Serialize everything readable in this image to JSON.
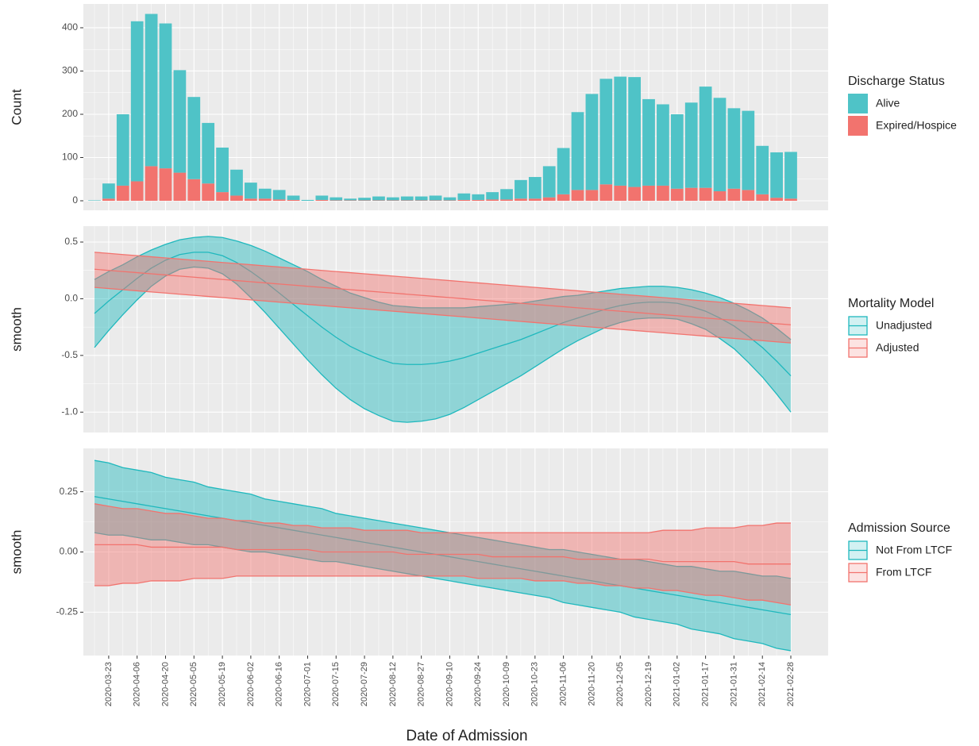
{
  "chart_data": [
    {
      "type": "bar",
      "stacked": true,
      "y_label": "Count",
      "legend_title": "Discharge Status",
      "series": [
        {
          "name": "Alive",
          "color": "#4fc3c7",
          "values": [
            1,
            35,
            165,
            370,
            352,
            335,
            237,
            190,
            140,
            103,
            60,
            37,
            23,
            22,
            10,
            2,
            10,
            7,
            4,
            6,
            9,
            7,
            9,
            9,
            11,
            7,
            15,
            13,
            17,
            24,
            43,
            50,
            72,
            107,
            180,
            222,
            244,
            252,
            254,
            200,
            188,
            172,
            197,
            234,
            216,
            186,
            183,
            112,
            105,
            108
          ]
        },
        {
          "name": "Expired/Hospice",
          "color": "#f2736e",
          "values": [
            0,
            5,
            35,
            45,
            80,
            75,
            65,
            50,
            40,
            20,
            12,
            5,
            5,
            3,
            2,
            0,
            2,
            1,
            1,
            1,
            1,
            1,
            1,
            1,
            1,
            1,
            2,
            2,
            3,
            3,
            5,
            5,
            8,
            15,
            25,
            25,
            38,
            35,
            32,
            35,
            35,
            28,
            30,
            30,
            22,
            28,
            25,
            15,
            7,
            5
          ]
        }
      ],
      "ylim": [
        -22,
        455
      ],
      "yticks": [
        0,
        100,
        200,
        300,
        400
      ],
      "grid": true
    },
    {
      "type": "ribbon",
      "y_label": "smooth",
      "legend_title": "Mortality Model",
      "series": [
        {
          "name": "Unadjusted",
          "color": "#1fb8bd",
          "values": [
            -0.13,
            -0.02,
            0.08,
            0.18,
            0.27,
            0.34,
            0.39,
            0.41,
            0.41,
            0.38,
            0.32,
            0.24,
            0.15,
            0.05,
            -0.05,
            -0.15,
            -0.25,
            -0.34,
            -0.42,
            -0.48,
            -0.53,
            -0.57,
            -0.58,
            -0.58,
            -0.57,
            -0.55,
            -0.52,
            -0.48,
            -0.44,
            -0.4,
            -0.36,
            -0.31,
            -0.26,
            -0.21,
            -0.17,
            -0.13,
            -0.09,
            -0.06,
            -0.04,
            -0.03,
            -0.03,
            -0.04,
            -0.07,
            -0.11,
            -0.17,
            -0.24,
            -0.33,
            -0.43,
            -0.55,
            -0.68
          ],
          "upper": [
            0.17,
            0.24,
            0.3,
            0.37,
            0.43,
            0.48,
            0.52,
            0.54,
            0.55,
            0.54,
            0.51,
            0.47,
            0.42,
            0.36,
            0.3,
            0.24,
            0.17,
            0.11,
            0.05,
            0.01,
            -0.03,
            -0.06,
            -0.07,
            -0.08,
            -0.08,
            -0.08,
            -0.08,
            -0.07,
            -0.06,
            -0.05,
            -0.04,
            -0.02,
            0,
            0.02,
            0.03,
            0.05,
            0.07,
            0.09,
            0.1,
            0.11,
            0.11,
            0.1,
            0.08,
            0.05,
            0.01,
            -0.04,
            -0.1,
            -0.17,
            -0.26,
            -0.36
          ],
          "lower": [
            -0.43,
            -0.28,
            -0.14,
            -0.01,
            0.11,
            0.2,
            0.26,
            0.28,
            0.27,
            0.22,
            0.13,
            0.01,
            -0.12,
            -0.26,
            -0.4,
            -0.54,
            -0.67,
            -0.79,
            -0.89,
            -0.97,
            -1.03,
            -1.08,
            -1.09,
            -1.08,
            -1.06,
            -1.02,
            -0.96,
            -0.89,
            -0.82,
            -0.75,
            -0.68,
            -0.6,
            -0.52,
            -0.44,
            -0.37,
            -0.31,
            -0.25,
            -0.21,
            -0.18,
            -0.17,
            -0.17,
            -0.18,
            -0.22,
            -0.27,
            -0.35,
            -0.44,
            -0.56,
            -0.69,
            -0.84,
            -1
          ]
        },
        {
          "name": "Adjusted",
          "color": "#f2736e",
          "values": [
            0.26,
            0.25,
            0.24,
            0.23,
            0.22,
            0.21,
            0.2,
            0.19,
            0.18,
            0.17,
            0.16,
            0.15,
            0.14,
            0.13,
            0.12,
            0.11,
            0.1,
            0.09,
            0.08,
            0.07,
            0.06,
            0.05,
            0.04,
            0.03,
            0.02,
            0.01,
            0,
            -0.01,
            -0.02,
            -0.03,
            -0.04,
            -0.05,
            -0.06,
            -0.07,
            -0.08,
            -0.09,
            -0.1,
            -0.11,
            -0.12,
            -0.13,
            -0.14,
            -0.15,
            -0.16,
            -0.17,
            -0.18,
            -0.19,
            -0.2,
            -0.21,
            -0.22,
            -0.23
          ],
          "upper": [
            0.41,
            0.4,
            0.39,
            0.38,
            0.37,
            0.36,
            0.35,
            0.34,
            0.33,
            0.32,
            0.31,
            0.3,
            0.29,
            0.28,
            0.27,
            0.26,
            0.25,
            0.24,
            0.23,
            0.22,
            0.21,
            0.2,
            0.19,
            0.18,
            0.17,
            0.16,
            0.15,
            0.14,
            0.13,
            0.12,
            0.11,
            0.1,
            0.09,
            0.08,
            0.07,
            0.06,
            0.05,
            0.04,
            0.03,
            0.02,
            0.01,
            0,
            -0.01,
            -0.02,
            -0.03,
            -0.04,
            -0.05,
            -0.06,
            -0.07,
            -0.08
          ],
          "lower": [
            0.1,
            0.09,
            0.08,
            0.07,
            0.06,
            0.05,
            0.04,
            0.03,
            0.02,
            0.01,
            0,
            -0.01,
            -0.02,
            -0.03,
            -0.04,
            -0.05,
            -0.06,
            -0.07,
            -0.08,
            -0.09,
            -0.1,
            -0.11,
            -0.12,
            -0.13,
            -0.14,
            -0.15,
            -0.16,
            -0.17,
            -0.18,
            -0.19,
            -0.2,
            -0.21,
            -0.22,
            -0.23,
            -0.24,
            -0.25,
            -0.26,
            -0.27,
            -0.28,
            -0.29,
            -0.3,
            -0.31,
            -0.32,
            -0.33,
            -0.34,
            -0.35,
            -0.36,
            -0.37,
            -0.38,
            -0.39
          ]
        }
      ],
      "ylim": [
        -1.18,
        0.64
      ],
      "yticks": [
        0.5,
        {
          "value": 0,
          "label": "0.0"
        },
        -0.5,
        {
          "value": -1,
          "label": "-1.0"
        }
      ],
      "grid": true
    },
    {
      "type": "ribbon",
      "y_label": "smooth",
      "legend_title": "Admission Source",
      "x_label": "Date of Admission",
      "categories": [
        null,
        "2020-03-23",
        null,
        "2020-04-06",
        null,
        "2020-04-20",
        null,
        "2020-05-05",
        null,
        "2020-05-19",
        null,
        "2020-06-02",
        null,
        "2020-06-16",
        null,
        "2020-07-01",
        null,
        "2020-07-15",
        null,
        "2020-07-29",
        null,
        "2020-08-12",
        null,
        "2020-08-27",
        null,
        "2020-09-10",
        null,
        "2020-09-24",
        null,
        "2020-10-09",
        null,
        "2020-10-23",
        null,
        "2020-11-06",
        null,
        "2020-11-20",
        null,
        "2020-12-05",
        null,
        "2020-12-19",
        null,
        "2021-01-02",
        null,
        "2021-01-17",
        null,
        "2021-01-31",
        null,
        "2021-02-14",
        null,
        "2021-02-28"
      ],
      "series": [
        {
          "name": "Not From LTCF",
          "color": "#1fb8bd",
          "values": [
            0.23,
            0.22,
            0.21,
            0.2,
            0.19,
            0.18,
            0.17,
            0.16,
            0.15,
            0.14,
            0.13,
            0.12,
            0.11,
            0.1,
            0.09,
            0.08,
            0.07,
            0.06,
            0.05,
            0.04,
            0.03,
            0.02,
            0.01,
            0,
            -0.01,
            -0.02,
            -0.03,
            -0.04,
            -0.05,
            -0.06,
            -0.07,
            -0.08,
            -0.09,
            -0.1,
            -0.11,
            -0.12,
            -0.13,
            -0.14,
            -0.15,
            -0.16,
            -0.17,
            -0.18,
            -0.19,
            -0.2,
            -0.21,
            -0.22,
            -0.23,
            -0.24,
            -0.25,
            -0.26
          ],
          "upper": [
            0.38,
            0.37,
            0.35,
            0.34,
            0.33,
            0.31,
            0.3,
            0.29,
            0.27,
            0.26,
            0.25,
            0.24,
            0.22,
            0.21,
            0.2,
            0.19,
            0.18,
            0.16,
            0.15,
            0.14,
            0.13,
            0.12,
            0.11,
            0.1,
            0.09,
            0.08,
            0.07,
            0.06,
            0.05,
            0.04,
            0.03,
            0.02,
            0.01,
            0.01,
            0,
            -0.01,
            -0.02,
            -0.03,
            -0.03,
            -0.04,
            -0.05,
            -0.06,
            -0.06,
            -0.07,
            -0.08,
            -0.08,
            -0.09,
            -0.1,
            -0.1,
            -0.11
          ],
          "lower": [
            0.08,
            0.07,
            0.07,
            0.06,
            0.05,
            0.05,
            0.04,
            0.03,
            0.03,
            0.02,
            0.01,
            0,
            0,
            -0.01,
            -0.02,
            -0.03,
            -0.04,
            -0.04,
            -0.05,
            -0.06,
            -0.07,
            -0.08,
            -0.09,
            -0.1,
            -0.11,
            -0.12,
            -0.13,
            -0.14,
            -0.15,
            -0.16,
            -0.17,
            -0.18,
            -0.19,
            -0.21,
            -0.22,
            -0.23,
            -0.24,
            -0.25,
            -0.27,
            -0.28,
            -0.29,
            -0.3,
            -0.32,
            -0.33,
            -0.34,
            -0.36,
            -0.37,
            -0.38,
            -0.4,
            -0.41
          ]
        },
        {
          "name": "From LTCF",
          "color": "#f2736e",
          "values": [
            0.03,
            0.03,
            0.03,
            0.03,
            0.02,
            0.02,
            0.02,
            0.02,
            0.02,
            0.02,
            0.01,
            0.01,
            0.01,
            0.01,
            0.01,
            0.01,
            0,
            0,
            0,
            0,
            0,
            0,
            -0.01,
            -0.01,
            -0.01,
            -0.01,
            -0.01,
            -0.01,
            -0.02,
            -0.02,
            -0.02,
            -0.02,
            -0.02,
            -0.02,
            -0.03,
            -0.03,
            -0.03,
            -0.03,
            -0.03,
            -0.03,
            -0.04,
            -0.04,
            -0.04,
            -0.04,
            -0.04,
            -0.04,
            -0.05,
            -0.05,
            -0.05,
            -0.05
          ],
          "upper": [
            0.2,
            0.19,
            0.18,
            0.18,
            0.17,
            0.16,
            0.16,
            0.15,
            0.14,
            0.14,
            0.13,
            0.13,
            0.12,
            0.12,
            0.11,
            0.11,
            0.1,
            0.1,
            0.1,
            0.09,
            0.09,
            0.09,
            0.09,
            0.08,
            0.08,
            0.08,
            0.08,
            0.08,
            0.08,
            0.08,
            0.08,
            0.08,
            0.08,
            0.08,
            0.08,
            0.08,
            0.08,
            0.08,
            0.08,
            0.08,
            0.09,
            0.09,
            0.09,
            0.1,
            0.1,
            0.1,
            0.11,
            0.11,
            0.12,
            0.12
          ],
          "lower": [
            -0.14,
            -0.14,
            -0.13,
            -0.13,
            -0.12,
            -0.12,
            -0.12,
            -0.11,
            -0.11,
            -0.11,
            -0.1,
            -0.1,
            -0.1,
            -0.1,
            -0.1,
            -0.1,
            -0.1,
            -0.1,
            -0.1,
            -0.1,
            -0.1,
            -0.1,
            -0.1,
            -0.1,
            -0.1,
            -0.1,
            -0.1,
            -0.11,
            -0.11,
            -0.11,
            -0.11,
            -0.12,
            -0.12,
            -0.12,
            -0.13,
            -0.13,
            -0.14,
            -0.14,
            -0.15,
            -0.15,
            -0.16,
            -0.16,
            -0.17,
            -0.18,
            -0.18,
            -0.19,
            -0.2,
            -0.2,
            -0.21,
            -0.22
          ]
        }
      ],
      "ylim": [
        -0.43,
        0.43
      ],
      "yticks": [
        -0.25,
        {
          "value": 0,
          "label": "0.00"
        },
        0.25
      ],
      "grid": true
    }
  ]
}
